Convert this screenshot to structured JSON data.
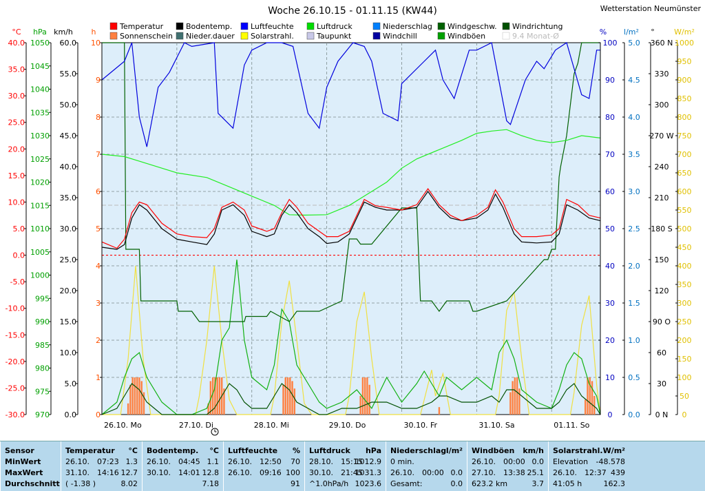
{
  "chart_data": {
    "type": "line",
    "title": "Woche 26.10.15 - 01.11.15 (KW44)",
    "station": "Wetterstation Neumünster",
    "x_labels": [
      "26.10. Mo",
      "27.10. Di",
      "28.10. Mi",
      "29.10. Do",
      "30.10. Fr",
      "31.10. Sa",
      "01.11. So"
    ],
    "x_range_days": [
      0,
      6.65
    ],
    "axes": [
      {
        "unit": "°C",
        "color": "#ff0000",
        "min": -30,
        "max": 40,
        "ticks": [
          "40.0",
          "35.0",
          "30.0",
          "25.0",
          "20.0",
          "15.0",
          "10.0",
          "5.0",
          "0.0",
          "-5.0",
          "-10.0",
          "-15.0",
          "-20.0",
          "-25.0",
          "-30.0"
        ]
      },
      {
        "unit": "hPa",
        "color": "#00a000",
        "min": 970,
        "max": 1050,
        "ticks": [
          "1050",
          "1045",
          "1040",
          "1035",
          "1030",
          "1025",
          "1020",
          "1015",
          "1010",
          "1005",
          "1000",
          "995",
          "990",
          "985",
          "980",
          "975",
          "970"
        ]
      },
      {
        "unit": "km/h",
        "color": "#000000",
        "min": 0,
        "max": 60,
        "ticks": [
          "60.0",
          "55.0",
          "50.0",
          "45.0",
          "40.0",
          "35.0",
          "30.0",
          "25.0",
          "20.0",
          "15.0",
          "10.0",
          "5.0",
          "0.0"
        ]
      },
      {
        "unit": "h",
        "color": "#ff5000",
        "min": 0,
        "max": 10,
        "ticks": [
          "10",
          "9",
          "8",
          "7",
          "6",
          "5",
          "4",
          "3",
          "2",
          "1",
          "0"
        ]
      },
      {
        "unit": "%",
        "color": "#0000c0",
        "min": 0,
        "max": 100,
        "ticks": [
          "100",
          "90",
          "80",
          "70",
          "60",
          "50",
          "40",
          "30",
          "20",
          "10",
          "0"
        ]
      },
      {
        "unit": "l/m²",
        "color": "#0070c0",
        "min": 0,
        "max": 5,
        "ticks": [
          "5.0",
          "4.5",
          "4.0",
          "3.5",
          "3.0",
          "2.5",
          "2.0",
          "1.5",
          "1.0",
          "0.5",
          "0.0"
        ]
      },
      {
        "unit": "°",
        "color": "#000000",
        "min": 0,
        "max": 360,
        "ticks": [
          "360 N",
          "330",
          "300",
          "270 W",
          "240",
          "210",
          "180 S",
          "150",
          "120",
          "90 O",
          "60",
          "30",
          "0 N"
        ]
      },
      {
        "unit": "W/m²",
        "color": "#e0c000",
        "min": 0,
        "max": 1000,
        "ticks": [
          "1000",
          "950",
          "900",
          "850",
          "800",
          "750",
          "700",
          "650",
          "600",
          "550",
          "500",
          "450",
          "400",
          "350",
          "300",
          "250",
          "200",
          "150",
          "100",
          "50",
          "0"
        ]
      }
    ],
    "legend": [
      {
        "name": "Temperatur",
        "color": "#ff0000"
      },
      {
        "name": "Bodentemp.",
        "color": "#000000"
      },
      {
        "name": "Luftfeuchte",
        "color": "#0000ff"
      },
      {
        "name": "Luftdruck",
        "color": "#00dd00"
      },
      {
        "name": "Niederschlag",
        "color": "#0080ff"
      },
      {
        "name": "Windgeschw.",
        "color": "#006000"
      },
      {
        "name": "Windrichtung",
        "color": "#005000"
      },
      {
        "name": "Sonnenschein",
        "color": "#ff8040"
      },
      {
        "name": "Nieder.dauer",
        "color": "#407070"
      },
      {
        "name": "Solarstrahl.",
        "color": "#ffff00"
      },
      {
        "name": "Taupunkt",
        "color": "#c8c8e8"
      },
      {
        "name": "Windchill",
        "color": "#0000a0"
      },
      {
        "name": "Windböen",
        "color": "#00a000"
      },
      {
        "name": "9.4 Monat-Ø",
        "color": "#d0d0d0"
      }
    ],
    "reference_line": {
      "name": "0 °C",
      "value": 0,
      "color": "#ff0000"
    },
    "average_line": {
      "name": "9.4 Monat-Ø",
      "value": 9.4,
      "color": "#bbbbbb"
    },
    "series": [
      {
        "name": "Temperatur",
        "axis": "°C",
        "x": [
          0,
          0.2,
          0.3,
          0.4,
          0.5,
          0.6,
          0.8,
          1,
          1.2,
          1.4,
          1.5,
          1.6,
          1.75,
          1.9,
          2,
          2.2,
          2.3,
          2.4,
          2.5,
          2.6,
          2.75,
          2.9,
          3,
          3.15,
          3.3,
          3.5,
          3.65,
          3.8,
          4,
          4.2,
          4.35,
          4.5,
          4.65,
          4.8,
          5,
          5.15,
          5.25,
          5.35,
          5.5,
          5.6,
          5.8,
          6,
          6.1,
          6.2,
          6.35,
          6.5,
          6.65
        ],
        "y": [
          2.5,
          1.3,
          3,
          8,
          10,
          9.5,
          6,
          4,
          3.5,
          3.3,
          5,
          9,
          10,
          8.5,
          5.5,
          4.5,
          5,
          8,
          10.5,
          9,
          6,
          4.5,
          3.5,
          3.5,
          4.5,
          10.5,
          9.3,
          9,
          8.5,
          9.5,
          12.5,
          9.5,
          7.5,
          6.5,
          7.5,
          9,
          12.3,
          10,
          5,
          3.5,
          3.5,
          3.8,
          5,
          10.5,
          9.5,
          7.5,
          7
        ]
      },
      {
        "name": "Bodentemp.",
        "axis": "°C",
        "x": [
          0,
          0.2,
          0.3,
          0.4,
          0.5,
          0.6,
          0.8,
          1,
          1.2,
          1.4,
          1.5,
          1.6,
          1.75,
          1.9,
          2,
          2.2,
          2.3,
          2.4,
          2.5,
          2.6,
          2.75,
          2.9,
          3,
          3.15,
          3.3,
          3.5,
          3.65,
          3.8,
          4,
          4.2,
          4.35,
          4.5,
          4.65,
          4.8,
          5,
          5.15,
          5.25,
          5.35,
          5.5,
          5.6,
          5.8,
          6,
          6.1,
          6.2,
          6.35,
          6.5,
          6.65
        ],
        "y": [
          1.5,
          1.1,
          2,
          7,
          9.5,
          8.5,
          5,
          3,
          2.5,
          2,
          4,
          8.5,
          9.5,
          7.5,
          4.5,
          3.5,
          4,
          7.5,
          9.5,
          8,
          5,
          3.5,
          2.2,
          2.5,
          4,
          10,
          9,
          8.5,
          8.5,
          9,
          12,
          9,
          7,
          6.5,
          7,
          8.5,
          11.5,
          9,
          4,
          2.5,
          2.3,
          2.5,
          4,
          9.5,
          8.5,
          7,
          6.5
        ]
      },
      {
        "name": "Luftfeuchte",
        "axis": "%",
        "x": [
          0,
          0.3,
          0.4,
          0.5,
          0.6,
          0.75,
          0.9,
          1.1,
          1.2,
          1.5,
          1.55,
          1.75,
          1.9,
          2,
          2.2,
          2.4,
          2.55,
          2.75,
          2.9,
          3,
          3.15,
          3.35,
          3.5,
          3.6,
          3.75,
          3.95,
          4,
          4.3,
          4.45,
          4.55,
          4.7,
          4.9,
          5,
          5.2,
          5.4,
          5.45,
          5.65,
          5.8,
          5.9,
          6.05,
          6.2,
          6.4,
          6.5,
          6.6,
          6.65
        ],
        "y": [
          90,
          95,
          100,
          80,
          72,
          88,
          92,
          100,
          99,
          100,
          81,
          77,
          94,
          98,
          100,
          100,
          99,
          81,
          77,
          88,
          95,
          100,
          99,
          95,
          81,
          79,
          89,
          95,
          98,
          90,
          85,
          98,
          98,
          100,
          79,
          78,
          90,
          95,
          93,
          98,
          100,
          86,
          85,
          98,
          98
        ]
      },
      {
        "name": "Luftdruck",
        "axis": "hPa",
        "x": [
          0,
          0.3,
          0.5,
          1,
          1.4,
          1.7,
          2,
          2.3,
          2.5,
          2.7,
          3,
          3.3,
          3.5,
          3.8,
          4,
          4.2,
          4.5,
          4.8,
          5,
          5.2,
          5.4,
          5.6,
          5.8,
          6,
          6.2,
          6.4,
          6.65
        ],
        "y": [
          1026,
          1025.5,
          1024.5,
          1022,
          1021,
          1019,
          1017,
          1015,
          1013,
          1012.9,
          1013,
          1015,
          1017,
          1020,
          1023,
          1025,
          1027,
          1029,
          1030.5,
          1031,
          1031.3,
          1030,
          1029,
          1028.5,
          1029,
          1030,
          1029.5
        ]
      },
      {
        "name": "Windrichtung",
        "axis": "°",
        "x": [
          0,
          0.3,
          0.32,
          0.5,
          0.52,
          1,
          1.02,
          1.2,
          1.3,
          1.9,
          1.92,
          2.2,
          2.25,
          2.5,
          2.6,
          2.9,
          3.2,
          3.3,
          3.4,
          3.45,
          3.6,
          4,
          4.2,
          4.25,
          4.4,
          4.5,
          4.6,
          4.9,
          4.95,
          5,
          5.4,
          5.9,
          5.95,
          6,
          6.05,
          6.1,
          6.12,
          6.2,
          6.3,
          6.35,
          6.4,
          6.45,
          6.65
        ],
        "y": [
          360,
          360,
          160,
          160,
          110,
          110,
          100,
          100,
          90,
          90,
          95,
          95,
          100,
          90,
          100,
          100,
          110,
          170,
          170,
          165,
          165,
          200,
          200,
          110,
          110,
          100,
          110,
          110,
          100,
          100,
          110,
          150,
          150,
          160,
          160,
          230,
          240,
          270,
          330,
          340,
          360,
          360,
          360
        ]
      },
      {
        "name": "Windgeschw.",
        "axis": "km/h",
        "x": [
          0,
          0.2,
          0.3,
          0.4,
          0.5,
          0.6,
          0.8,
          1,
          1.2,
          1.4,
          1.5,
          1.6,
          1.7,
          1.8,
          1.9,
          2,
          2.2,
          2.3,
          2.4,
          2.5,
          2.6,
          2.75,
          2.9,
          3,
          3.2,
          3.4,
          3.6,
          3.8,
          4,
          4.2,
          4.4,
          4.5,
          4.6,
          4.8,
          5,
          5.2,
          5.3,
          5.4,
          5.5,
          5.6,
          5.8,
          6,
          6.1,
          6.2,
          6.3,
          6.4,
          6.5,
          6.6,
          6.65
        ],
        "y": [
          0,
          1,
          3,
          5,
          4,
          2,
          0,
          0,
          0,
          0,
          1,
          3,
          5,
          4,
          2,
          1,
          1,
          3,
          5,
          4,
          2,
          1,
          0,
          0,
          1,
          1,
          2,
          2,
          1,
          1,
          2,
          3,
          3,
          2,
          2,
          3,
          2,
          4,
          4,
          3,
          1,
          1,
          2,
          4,
          5,
          3,
          2,
          1,
          0
        ]
      },
      {
        "name": "Windböen",
        "axis": "km/h",
        "x": [
          0,
          0.2,
          0.3,
          0.4,
          0.5,
          0.6,
          0.8,
          1,
          1.2,
          1.4,
          1.5,
          1.6,
          1.7,
          1.8,
          1.9,
          2,
          2.2,
          2.3,
          2.4,
          2.5,
          2.6,
          2.75,
          2.9,
          3,
          3.2,
          3.4,
          3.6,
          3.8,
          4,
          4.2,
          4.3,
          4.4,
          4.5,
          4.6,
          4.8,
          5,
          5.2,
          5.3,
          5.4,
          5.5,
          5.6,
          5.8,
          6,
          6.1,
          6.2,
          6.3,
          6.4,
          6.5,
          6.6,
          6.65
        ],
        "y": [
          0,
          2,
          6,
          9,
          10,
          6,
          2,
          0,
          0,
          1,
          4,
          12,
          14,
          25,
          12,
          6,
          4,
          8,
          17,
          15,
          8,
          5,
          2,
          1,
          2,
          4,
          1,
          6,
          2,
          5,
          7,
          5,
          3,
          6,
          4,
          6,
          4,
          10,
          12,
          9,
          4,
          2,
          1,
          4,
          8,
          10,
          9,
          5,
          3,
          0
        ]
      },
      {
        "name": "Solarstrahl.",
        "axis": "W/m²",
        "x": [
          0,
          0.25,
          0.35,
          0.45,
          0.55,
          0.65,
          1.25,
          1.3,
          1.4,
          1.5,
          1.6,
          1.7,
          1.8,
          2.25,
          2.3,
          2.4,
          2.5,
          2.6,
          2.7,
          2.8,
          3.25,
          3.3,
          3.4,
          3.5,
          3.6,
          3.7,
          4.25,
          4.3,
          4.4,
          4.45,
          4.55,
          4.65,
          5.25,
          5.3,
          5.4,
          5.5,
          5.6,
          5.7,
          6.25,
          6.3,
          6.4,
          6.5,
          6.6,
          6.65
        ],
        "y": [
          0,
          0,
          150,
          400,
          150,
          0,
          0,
          50,
          200,
          400,
          200,
          40,
          0,
          0,
          50,
          250,
          360,
          200,
          30,
          0,
          0,
          50,
          250,
          330,
          150,
          0,
          0,
          40,
          120,
          50,
          110,
          0,
          0,
          50,
          280,
          330,
          150,
          0,
          0,
          60,
          240,
          320,
          80,
          0
        ]
      },
      {
        "name": "Sonnenschein",
        "axis": "h",
        "type": "bar",
        "x": [
          0.35,
          0.38,
          0.41,
          0.44,
          0.47,
          0.5,
          0.53,
          0.56,
          1.42,
          1.45,
          1.48,
          1.51,
          1.54,
          1.57,
          1.6,
          1.63,
          2.42,
          2.45,
          2.48,
          2.51,
          2.54,
          2.57,
          3.45,
          3.48,
          3.51,
          3.54,
          3.57,
          4.5,
          5.45,
          5.48,
          5.51,
          5.54,
          5.57,
          6.45,
          6.48,
          6.51,
          6.54,
          6.57
        ],
        "y": [
          0.3,
          0.8,
          1,
          1,
          1,
          1,
          0.9,
          0.6,
          0.3,
          0.9,
          1,
          1,
          1,
          1,
          1,
          0.7,
          0.8,
          1,
          1,
          1,
          0.9,
          0.7,
          0.5,
          1,
          1,
          1,
          0.8,
          0.2,
          0.6,
          0.9,
          1,
          1,
          0.7,
          0.4,
          1,
          1,
          0.9,
          0.5
        ]
      }
    ]
  },
  "stats": {
    "columns": [
      {
        "header": "Sensor",
        "unit": "",
        "rows": [
          [
            "MinWert",
            "",
            ""
          ],
          [
            "MaxWert",
            "",
            ""
          ],
          [
            "Durchschnitt",
            "",
            ""
          ]
        ]
      },
      {
        "header": "Temperatur",
        "unit": "°C",
        "rows": [
          [
            "26.10.",
            "07:23",
            "1.3"
          ],
          [
            "31.10.",
            "14:16",
            "12.7"
          ],
          [
            "( -1.38 )",
            "",
            "8.02"
          ]
        ]
      },
      {
        "header": "Bodentemp.",
        "unit": "°C",
        "rows": [
          [
            "26.10.",
            "04:45",
            "1.1"
          ],
          [
            "30.10.",
            "14:01",
            "12.8"
          ],
          [
            "",
            "",
            "7.18"
          ]
        ]
      },
      {
        "header": "Luftfeuchte",
        "unit": "%",
        "rows": [
          [
            "26.10.",
            "12:50",
            "70"
          ],
          [
            "26.10.",
            "09:16",
            "100"
          ],
          [
            "",
            "",
            "91"
          ]
        ]
      },
      {
        "header": "Luftdruck",
        "unit": "hPa",
        "rows": [
          [
            "28.10.",
            "15:15",
            "1012.9"
          ],
          [
            "30.10.",
            "21:45",
            "1031.3"
          ],
          [
            "^1.0hPa/h",
            "",
            "1023.6"
          ]
        ]
      },
      {
        "header": "Niederschlag",
        "unit": "l/m²",
        "rows": [
          [
            "0 min.",
            "",
            ""
          ],
          [
            "26.10.",
            "00:00",
            "0.0"
          ],
          [
            "Gesamt:",
            "",
            "0.0"
          ]
        ]
      },
      {
        "header": "Windböen",
        "unit": "km/h",
        "rows": [
          [
            "26.10.",
            "00:00",
            "0.0"
          ],
          [
            "27.10.",
            "13:38",
            "25.1"
          ],
          [
            "623.2 km",
            "",
            "3.7"
          ]
        ]
      },
      {
        "header": "Solarstrahl.",
        "unit": "W/m²",
        "rows": [
          [
            "Elevation",
            "",
            "-48.578"
          ],
          [
            "26.10.",
            "12:37",
            "439"
          ],
          [
            "41:05 h",
            "",
            "162.3"
          ]
        ]
      }
    ]
  }
}
